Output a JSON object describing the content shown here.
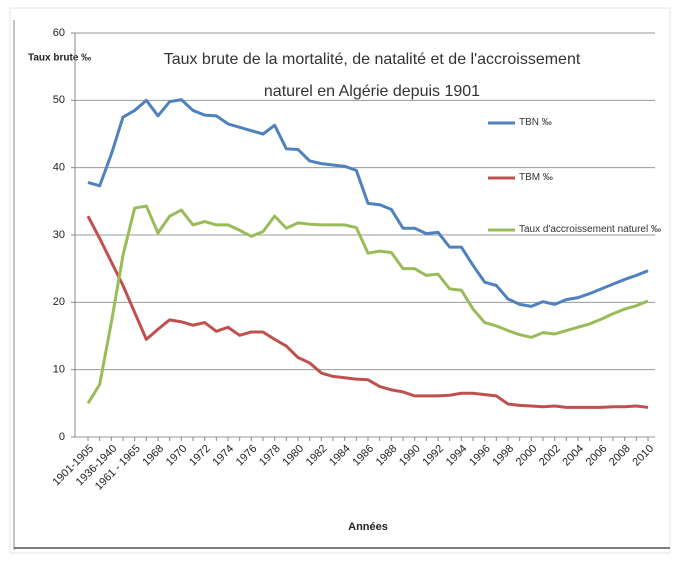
{
  "chart_data": {
    "type": "line",
    "title": [
      "Taux brute de la mortalité, de natalité et de l'accroissement",
      "naturel en Algérie depuis 1901"
    ],
    "y_label": "Taux brute ‰",
    "x_label": "Années",
    "categories": [
      "1901-1905",
      null,
      "1936-1940",
      null,
      "1961 - 1965",
      null,
      "1968",
      null,
      "1970",
      null,
      "1972",
      null,
      "1974",
      null,
      "1976",
      null,
      "1978",
      null,
      "1980",
      null,
      "1982",
      null,
      "1984",
      null,
      "1986",
      null,
      "1988",
      null,
      "1990",
      null,
      "1992",
      null,
      "1994",
      null,
      "1996",
      null,
      "1998",
      null,
      "2000",
      null,
      "2002",
      null,
      "2004",
      null,
      "2006",
      null,
      "2008",
      null,
      "2010"
    ],
    "series": [
      {
        "name": "TBN  ‰",
        "color": "#4f81bd",
        "values": [
          37.8,
          37.3,
          42,
          47.5,
          48.5,
          50,
          47.7,
          49.8,
          50.1,
          48.5,
          47.8,
          47.7,
          46.5,
          46,
          45.5,
          45,
          46.3,
          42.8,
          42.7,
          41,
          40.6,
          40.4,
          40.2,
          39.6,
          34.7,
          34.5,
          33.8,
          31,
          31,
          30.2,
          30.4,
          28.2,
          28.2,
          25.5,
          23,
          22.5,
          20.5,
          19.7,
          19.4,
          20.1,
          19.7,
          20.4,
          20.7,
          21.3,
          22,
          22.7,
          23.4,
          24,
          24.7
        ]
      },
      {
        "name": "TBM ‰",
        "color": "#c0504d",
        "values": [
          32.8,
          29.5,
          26,
          22.5,
          18.5,
          14.5,
          16,
          17.4,
          17.1,
          16.6,
          17,
          15.7,
          16.3,
          15.1,
          15.6,
          15.6,
          14.5,
          13.5,
          11.8,
          11,
          9.5,
          9,
          8.8,
          8.6,
          8.5,
          7.5,
          7,
          6.7,
          6.1,
          6.1,
          6.1,
          6.2,
          6.5,
          6.5,
          6.3,
          6.1,
          4.9,
          4.7,
          4.6,
          4.5,
          4.6,
          4.4,
          4.4,
          4.4,
          4.4,
          4.5,
          4.5,
          4.6,
          4.4
        ]
      },
      {
        "name": "Taux d'accroissement naturel ‰",
        "color": "#9bbb59",
        "values": [
          5,
          7.8,
          17,
          27,
          34,
          34.3,
          30.3,
          32.8,
          33.7,
          31.5,
          32,
          31.5,
          31.5,
          30.7,
          29.8,
          30.5,
          32.8,
          31,
          31.8,
          31.6,
          31.5,
          31.5,
          31.5,
          31.1,
          27.3,
          27.6,
          27.4,
          25,
          25,
          24,
          24.2,
          22,
          21.8,
          19,
          17,
          16.5,
          15.8,
          15.2,
          14.8,
          15.5,
          15.3,
          15.8,
          16.3,
          16.8,
          17.5,
          18.3,
          19,
          19.5,
          20.2
        ]
      }
    ],
    "ylim": [
      0,
      60
    ],
    "yticks": [
      0,
      10,
      20,
      30,
      40,
      50,
      60
    ],
    "grid": true,
    "legend": "right"
  }
}
